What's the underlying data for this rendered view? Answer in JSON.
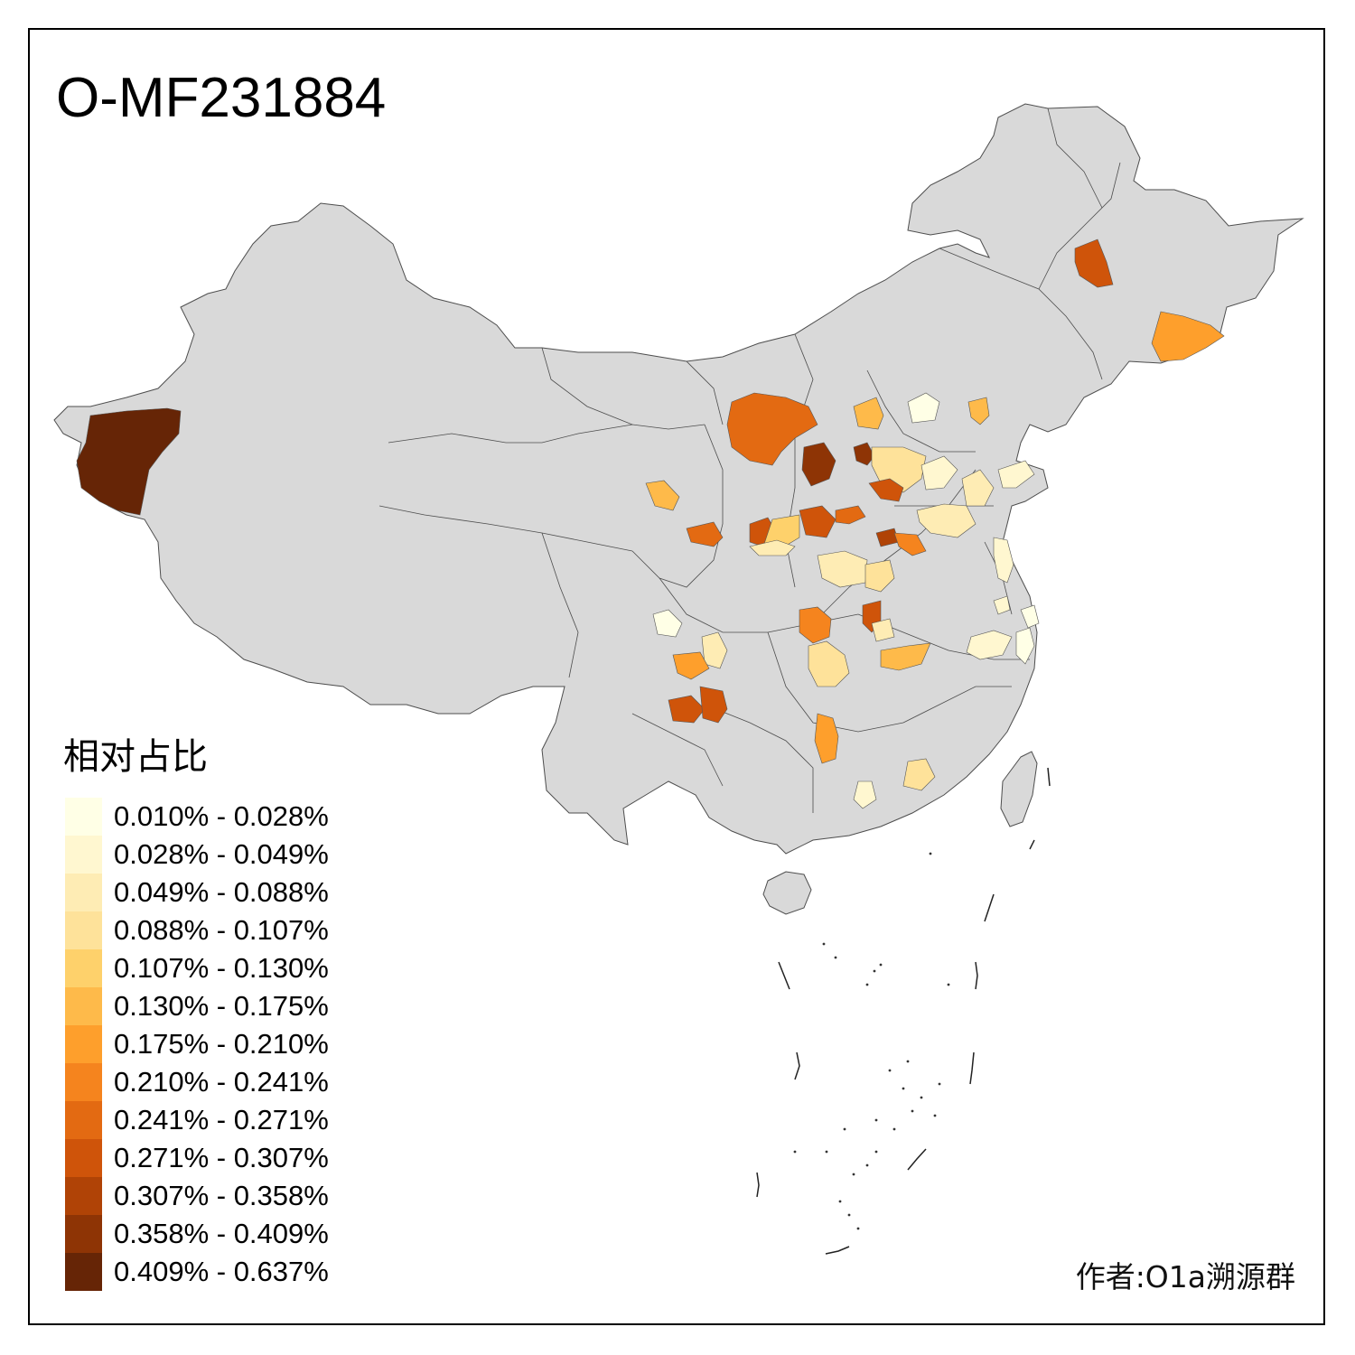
{
  "title": "O-MF231884",
  "legend": {
    "title": "相对占比",
    "items": [
      {
        "label": "0.010% - 0.028%",
        "color": "#ffffe6"
      },
      {
        "label": "0.028% - 0.049%",
        "color": "#fff7d0"
      },
      {
        "label": "0.049% - 0.088%",
        "color": "#feecb4"
      },
      {
        "label": "0.088% - 0.107%",
        "color": "#fee29a"
      },
      {
        "label": "0.107% - 0.130%",
        "color": "#fed16b"
      },
      {
        "label": "0.130% - 0.175%",
        "color": "#feba4a"
      },
      {
        "label": "0.175% - 0.210%",
        "color": "#fe9f2c"
      },
      {
        "label": "0.210% - 0.241%",
        "color": "#f5841e"
      },
      {
        "label": "0.241% - 0.271%",
        "color": "#e36a12"
      },
      {
        "label": "0.271% - 0.307%",
        "color": "#cf540a"
      },
      {
        "label": "0.307% - 0.358%",
        "color": "#b04306"
      },
      {
        "label": "0.358% - 0.409%",
        "color": "#8e3405"
      },
      {
        "label": "0.409% - 0.637%",
        "color": "#662506"
      }
    ]
  },
  "author": "作者:O1a溯源群",
  "map_colors": {
    "land": "#d9d9d9",
    "border": "#4d4d4d"
  }
}
